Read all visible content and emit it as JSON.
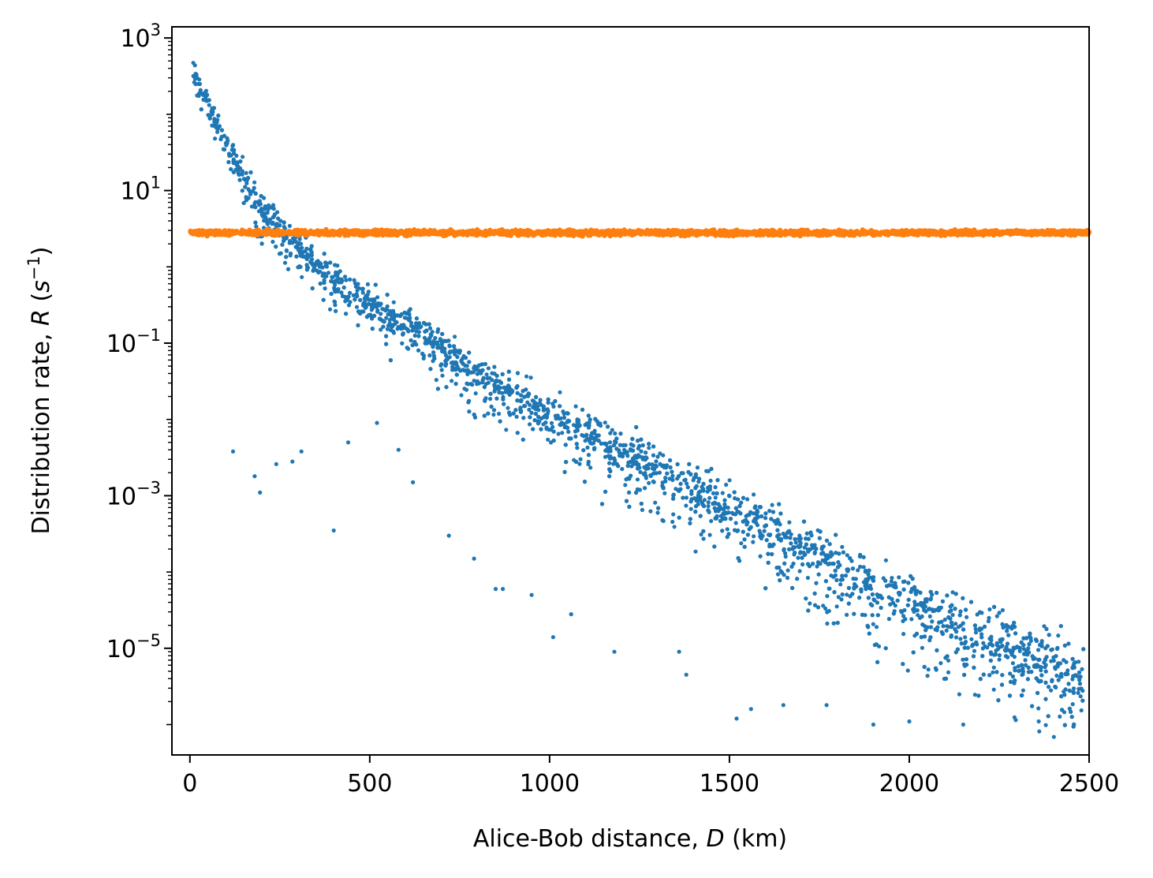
{
  "chart_data": {
    "type": "scatter",
    "xlabel": {
      "prefix": "Alice-Bob distance, ",
      "var": "D",
      "suffix": " (km)"
    },
    "ylabel": {
      "prefix": "Distribution rate, ",
      "var": "R",
      "suffix_open": " (",
      "unit_base": "s",
      "unit_exp": "−1",
      "suffix_close": ")"
    },
    "xlim": [
      -50,
      2500
    ],
    "ylim": [
      4e-07,
      1400
    ],
    "yscale": "log",
    "grid": false,
    "xticks": [
      0,
      500,
      1000,
      1500,
      2000,
      2500
    ],
    "xtick_labels": [
      "0",
      "500",
      "1000",
      "1500",
      "2000",
      "2500"
    ],
    "yticks": [
      {
        "value": 1000,
        "base": "10",
        "exp": "3"
      },
      {
        "value": 10,
        "base": "10",
        "exp": "1"
      },
      {
        "value": 0.1,
        "base": "10",
        "exp": "−1"
      },
      {
        "value": 0.001,
        "base": "10",
        "exp": "−3"
      },
      {
        "value": 1e-05,
        "base": "10",
        "exp": "−5"
      }
    ],
    "series": [
      {
        "color": "#1f77b4",
        "trend": [
          [
            0,
            500
          ],
          [
            100,
            40
          ],
          [
            200,
            6
          ],
          [
            300,
            2
          ],
          [
            400,
            0.7
          ],
          [
            500,
            0.35
          ],
          [
            600,
            0.18
          ],
          [
            800,
            0.04
          ],
          [
            1000,
            0.012
          ],
          [
            1200,
            0.004
          ],
          [
            1400,
            0.0012
          ],
          [
            1600,
            0.0004
          ],
          [
            1800,
            0.00012
          ],
          [
            2000,
            4e-05
          ],
          [
            2200,
            1.5e-05
          ],
          [
            2500,
            4e-06
          ]
        ],
        "outliers": [
          [
            120,
            0.0038
          ],
          [
            180,
            0.0018
          ],
          [
            195,
            0.0011
          ],
          [
            240,
            0.0026
          ],
          [
            285,
            0.0028
          ],
          [
            310,
            0.0038
          ],
          [
            400,
            0.00035
          ],
          [
            440,
            0.005
          ],
          [
            520,
            0.009
          ],
          [
            580,
            0.004
          ],
          [
            620,
            0.0015
          ],
          [
            720,
            0.0003
          ],
          [
            790,
            0.00015
          ],
          [
            850,
            6e-05
          ],
          [
            870,
            6e-05
          ],
          [
            950,
            5e-05
          ],
          [
            1010,
            1.4e-05
          ],
          [
            1060,
            2.8e-05
          ],
          [
            1180,
            9e-06
          ],
          [
            1360,
            9e-06
          ],
          [
            1380,
            4.5e-06
          ],
          [
            1520,
            1.2e-06
          ],
          [
            1560,
            1.6e-06
          ],
          [
            1650,
            1.8e-06
          ],
          [
            1770,
            1.8e-06
          ],
          [
            1900,
            1e-06
          ],
          [
            2000,
            1.1e-06
          ],
          [
            2150,
            1e-06
          ],
          [
            2360,
            1.1e-06
          ]
        ]
      },
      {
        "color": "#ff7f0e",
        "constant": 2.8
      }
    ]
  }
}
